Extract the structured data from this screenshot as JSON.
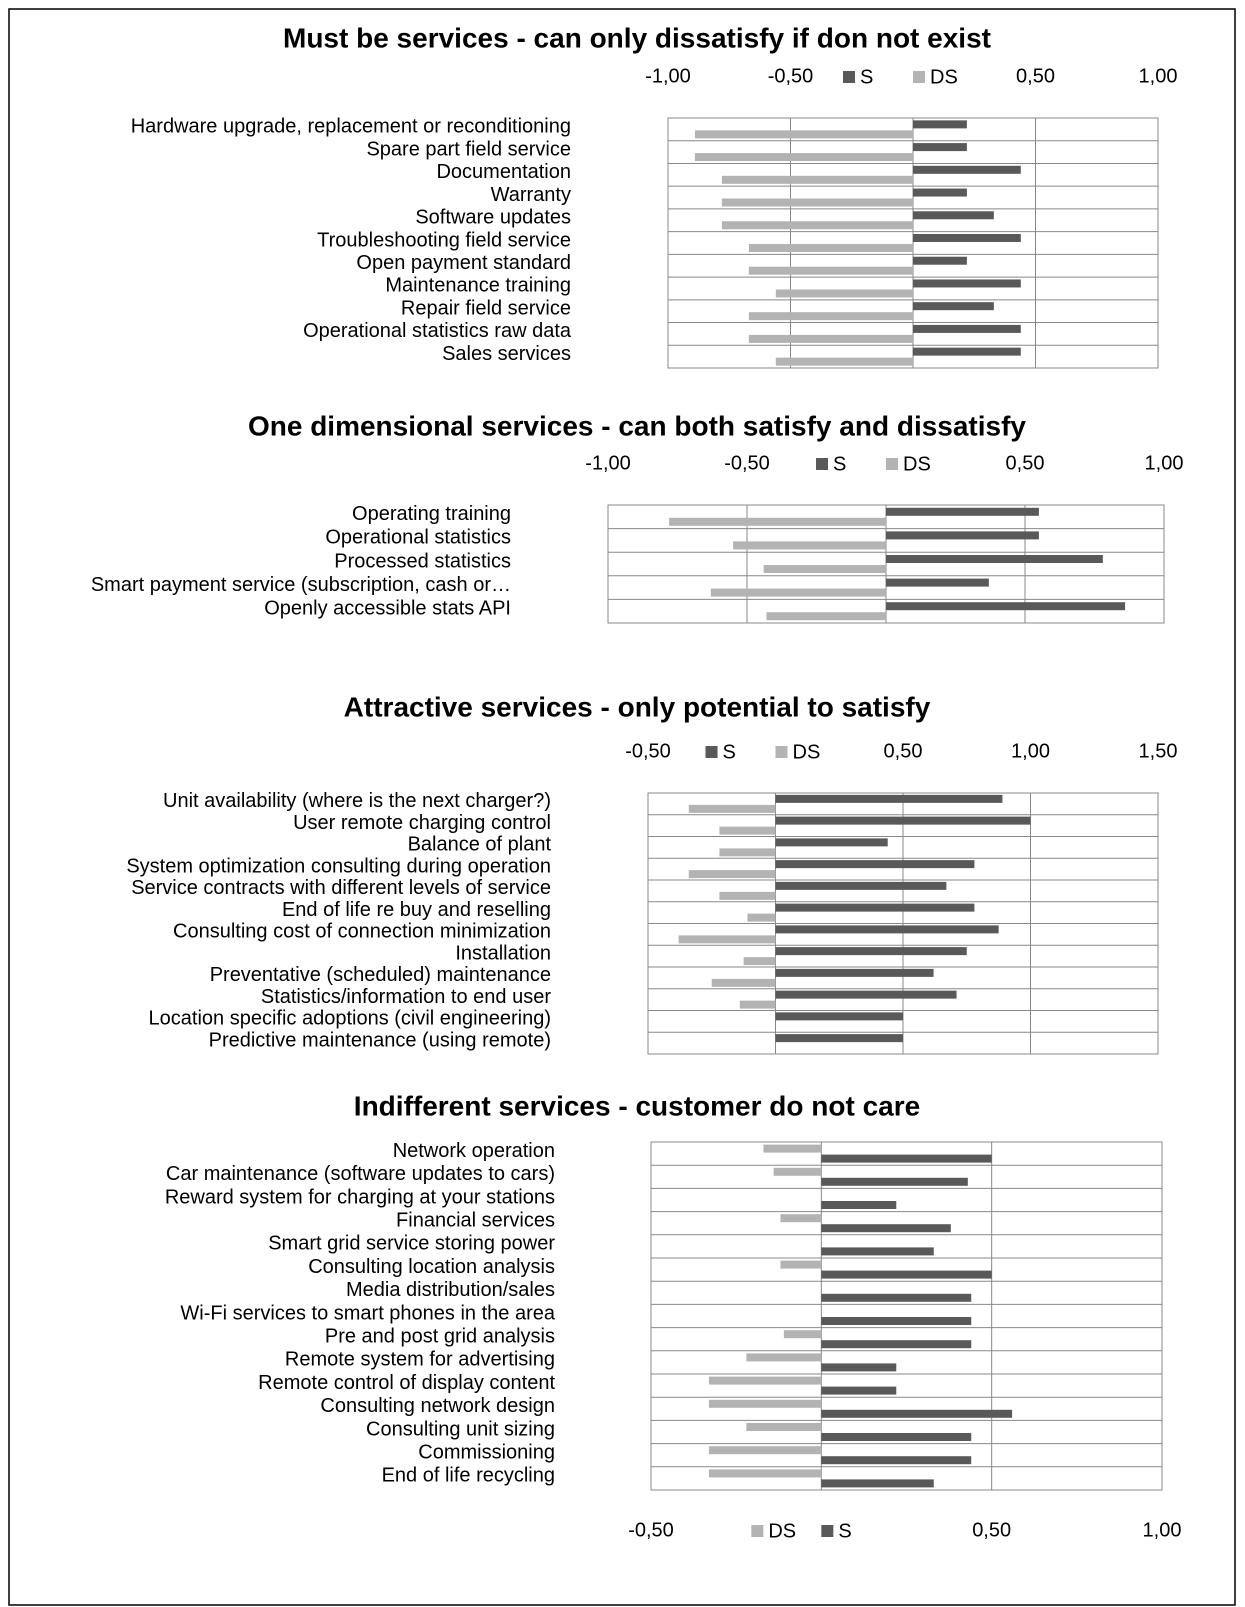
{
  "chart_data": [
    {
      "type": "bar",
      "orientation": "horizontal",
      "title": "Must be services - can only dissatisfy if don not exist",
      "categories": [
        "Hardware upgrade, replacement or reconditioning",
        "Spare part field service",
        "Documentation",
        "Warranty",
        "Software updates",
        "Troubleshooting field service",
        "Open payment standard ",
        "Maintenance training",
        "Repair field service",
        "Operational statistics raw data",
        "Sales services"
      ],
      "series": [
        {
          "name": "S",
          "color": "#595959",
          "values": [
            0.22,
            0.22,
            0.44,
            0.22,
            0.33,
            0.44,
            0.22,
            0.44,
            0.33,
            0.44,
            0.44
          ]
        },
        {
          "name": "DS",
          "color": "#b3b3b3",
          "values": [
            -0.89,
            -0.89,
            -0.78,
            -0.78,
            -0.78,
            -0.67,
            -0.67,
            -0.56,
            -0.67,
            -0.67,
            -0.56
          ]
        }
      ],
      "xlim": [
        -1,
        1
      ],
      "xticks": [
        {
          "value": -1,
          "label": "-1,00"
        },
        {
          "value": -0.5,
          "label": "-0,50"
        },
        {
          "value": 0.5,
          "label": "0,50"
        },
        {
          "value": 1,
          "label": "1,00"
        }
      ],
      "grid": true,
      "axis_position": "top",
      "legend": "top"
    },
    {
      "type": "bar",
      "orientation": "horizontal",
      "title": "One dimensional services - can both satisfy and dissatisfy",
      "categories": [
        "Operating training",
        "Operational statistics ",
        "Processed statistics",
        "Smart payment service (subscription, cash or…",
        "Openly accessible stats API"
      ],
      "series": [
        {
          "name": "S",
          "color": "#595959",
          "values": [
            0.55,
            0.55,
            0.78,
            0.37,
            0.86
          ]
        },
        {
          "name": "DS",
          "color": "#b3b3b3",
          "values": [
            -0.78,
            -0.55,
            -0.44,
            -0.63,
            -0.43
          ]
        }
      ],
      "xlim": [
        -1,
        1
      ],
      "xticks": [
        {
          "value": -1,
          "label": "-1,00"
        },
        {
          "value": -0.5,
          "label": "-0,50"
        },
        {
          "value": 0.5,
          "label": "0,50"
        },
        {
          "value": 1,
          "label": "1,00"
        }
      ],
      "grid": true,
      "axis_position": "top",
      "legend": "top"
    },
    {
      "type": "bar",
      "orientation": "horizontal",
      "title": "Attractive services - only potential to satisfy",
      "categories": [
        "Unit availability (where is the next charger?)",
        "User remote charging control",
        "Balance of plant",
        "System optimization consulting during operation",
        "Service contracts with different levels of service",
        "End of life re buy and reselling",
        "Consulting cost of connection minimization",
        "Installation",
        "Preventative (scheduled) maintenance",
        "Statistics/information to end user",
        "Location specific adoptions (civil engineering)",
        "Predictive maintenance (using remote)"
      ],
      "series": [
        {
          "name": "S",
          "color": "#595959",
          "values": [
            0.89,
            1.0,
            0.44,
            0.78,
            0.67,
            0.78,
            0.875,
            0.75,
            0.62,
            0.71,
            0.5,
            0.5
          ]
        },
        {
          "name": "DS",
          "color": "#b3b3b3",
          "values": [
            -0.34,
            -0.22,
            -0.22,
            -0.34,
            -0.22,
            -0.11,
            -0.38,
            -0.125,
            -0.25,
            -0.14,
            0,
            0
          ]
        }
      ],
      "xlim": [
        -0.5,
        1.5
      ],
      "xticks": [
        {
          "value": -0.5,
          "label": "-0,50"
        },
        {
          "value": 0.5,
          "label": "0,50"
        },
        {
          "value": 1,
          "label": "1,00"
        },
        {
          "value": 1.5,
          "label": "1,50"
        }
      ],
      "grid": true,
      "axis_position": "top",
      "legend": "top"
    },
    {
      "type": "bar",
      "orientation": "horizontal",
      "title": "Indifferent services - customer do not care",
      "categories": [
        "Network operation ",
        "Car maintenance (software updates to cars)",
        "Reward system for charging at your stations",
        "Financial services ",
        "Smart grid service storing power",
        "Consulting location analysis",
        "Media distribution/sales",
        "Wi-Fi services to smart phones in the area",
        "Pre and post grid analysis",
        "Remote system for advertising",
        "Remote control of display content",
        "Consulting network design ",
        "Consulting unit sizing",
        "Commissioning",
        "End of life recycling"
      ],
      "series": [
        {
          "name": "DS",
          "color": "#b3b3b3",
          "values": [
            -0.17,
            -0.14,
            0,
            -0.12,
            0,
            -0.12,
            0,
            0,
            -0.11,
            -0.22,
            -0.33,
            -0.33,
            -0.22,
            -0.33,
            -0.33
          ]
        },
        {
          "name": "S",
          "color": "#595959",
          "values": [
            0.5,
            0.43,
            0.22,
            0.38,
            0.33,
            0.5,
            0.44,
            0.44,
            0.44,
            0.22,
            0.22,
            0.56,
            0.44,
            0.44,
            0.33
          ]
        }
      ],
      "xlim": [
        -0.5,
        1
      ],
      "xticks": [
        {
          "value": -0.5,
          "label": "-0,50"
        },
        {
          "value": 0.5,
          "label": "0,50"
        },
        {
          "value": 1,
          "label": "1,00"
        }
      ],
      "grid": true,
      "axis_position": "bottom",
      "legend": "bottom"
    }
  ]
}
